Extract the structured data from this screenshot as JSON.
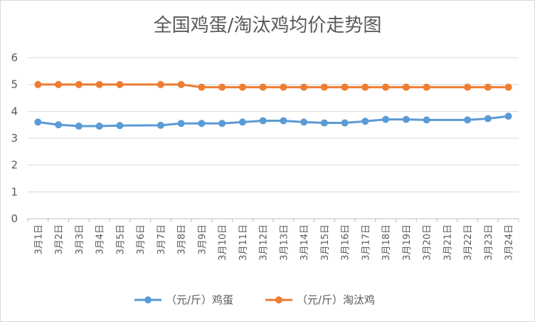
{
  "chart_data": {
    "type": "line",
    "title": "全国鸡蛋/淘汰鸡均价走势图",
    "categories": [
      "3月1日",
      "3月2日",
      "3月3日",
      "3月4日",
      "3月5日",
      "3月6日",
      "3月7日",
      "3月8日",
      "3月9日",
      "3月10日",
      "3月11日",
      "3月12日",
      "3月13日",
      "3月14日",
      "3月15日",
      "3月16日",
      "3月17日",
      "3月18日",
      "3月19日",
      "3月20日",
      "3月21日",
      "3月22日",
      "3月23日",
      "3月24日"
    ],
    "yticks": [
      "0",
      "1",
      "2",
      "3",
      "4",
      "5",
      "6"
    ],
    "ylim": [
      0,
      6
    ],
    "grid": true,
    "legend_position": "bottom",
    "series": [
      {
        "name": "（元/斤）鸡蛋",
        "color": "#5b9bd5",
        "values": [
          3.6,
          3.5,
          3.45,
          3.45,
          3.47,
          null,
          3.48,
          3.55,
          3.55,
          3.55,
          3.6,
          3.65,
          3.65,
          3.6,
          3.57,
          3.57,
          3.63,
          3.7,
          3.7,
          3.68,
          null,
          3.68,
          3.73,
          3.82
        ]
      },
      {
        "name": "（元/斤）淘汰鸡",
        "color": "#ed7d31",
        "values": [
          5.0,
          5.0,
          5.0,
          5.0,
          5.0,
          null,
          5.0,
          5.0,
          4.9,
          4.9,
          4.9,
          4.9,
          4.9,
          4.9,
          4.9,
          4.9,
          4.9,
          4.9,
          4.9,
          4.9,
          null,
          4.9,
          4.9,
          4.9
        ]
      }
    ]
  }
}
